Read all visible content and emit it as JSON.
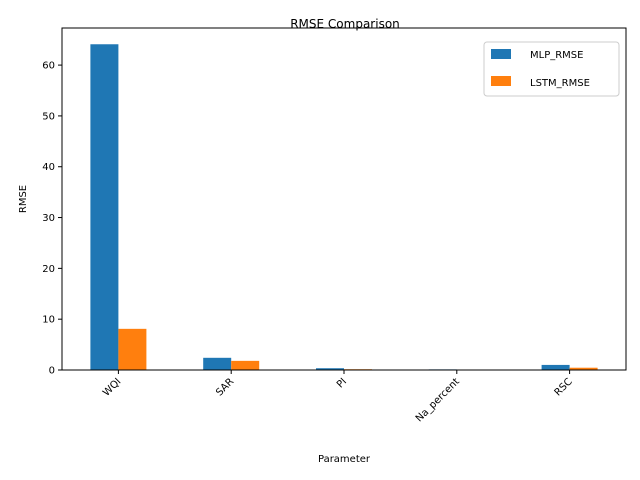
{
  "chart_data": {
    "type": "bar",
    "title": "RMSE Comparison",
    "xlabel": "Parameter",
    "ylabel": "RMSE",
    "categories": [
      "WQI",
      "SAR",
      "PI",
      "Na_percent",
      "RSC"
    ],
    "series": [
      {
        "name": "MLP_RMSE",
        "color": "#1f77b4",
        "values": [
          64.1,
          2.4,
          0.35,
          0.12,
          1.0
        ]
      },
      {
        "name": "LSTM_RMSE",
        "color": "#ff7f0e",
        "values": [
          8.1,
          1.8,
          0.15,
          0.05,
          0.45
        ]
      }
    ],
    "ylim": [
      0,
      67.3
    ],
    "yticks": [
      0,
      10,
      20,
      30,
      40,
      50,
      60
    ],
    "grid": false,
    "legend_position": "top-right",
    "xtick_rotation": 45
  }
}
